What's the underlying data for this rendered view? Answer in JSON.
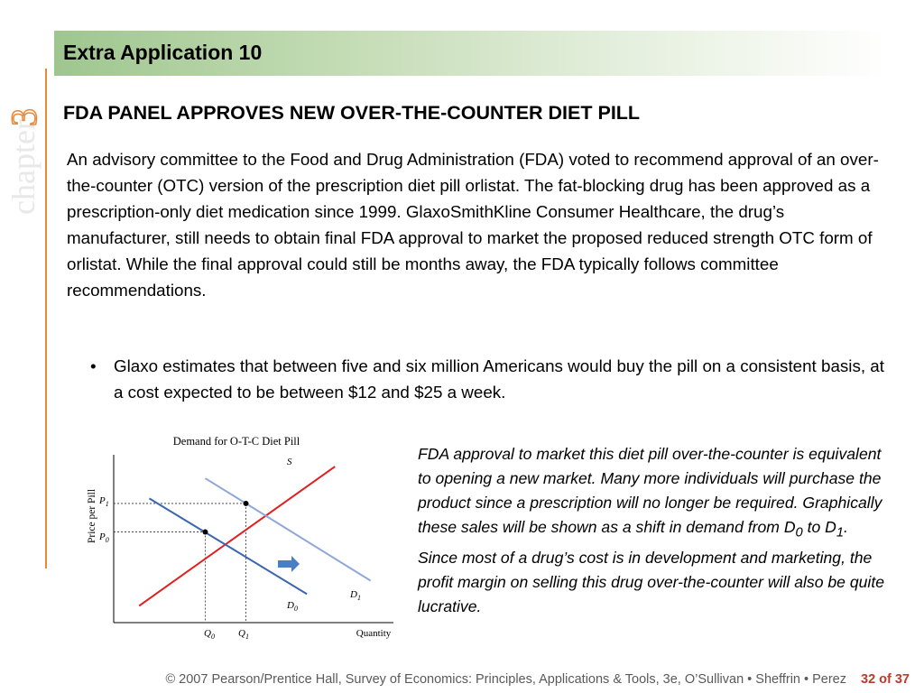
{
  "side_label": {
    "word": "chapter",
    "number": "3"
  },
  "header": {
    "title": "Extra Application 10"
  },
  "subtitle": "FDA PANEL APPROVES NEW OVER-THE-COUNTER DIET PILL",
  "body_paragraph": "An advisory committee to the Food and Drug Administration (FDA) voted to recommend approval of an over-the-counter (OTC) version of the prescription diet pill orlistat. The fat-blocking drug has been approved as a prescription-only diet medication since 1999. GlaxoSmithKline Consumer Healthcare, the drug’s manufacturer, still needs to obtain final FDA approval to market the proposed reduced strength OTC form of orlistat. While the final approval could still be months away, the FDA typically follows committee recommendations.",
  "bullet": {
    "marker": "•",
    "text": "Glaxo estimates that between five and six million Americans would buy the pill on a consistent basis, at a cost expected to be between $12 and $25 a week."
  },
  "chart": {
    "title": "Demand for O-T-C Diet Pill",
    "ylabel": "Price per Pill",
    "xlabel": "Quantity",
    "labels": {
      "S": "S",
      "D1": "D",
      "D1_sub": "1",
      "D0": "D",
      "D0_sub": "0",
      "P1": "P",
      "P1_sub": "1",
      "P0": "P",
      "P0_sub": "0",
      "Q0": "Q",
      "Q0_sub": "0",
      "Q1": "Q",
      "Q1_sub": "1"
    },
    "colors": {
      "supply": "#e02020",
      "demand_d0": "#3a66b0",
      "demand_d1": "#8fa8d8",
      "shift_arrow": "#4a7fc8"
    }
  },
  "chart_data": {
    "type": "line",
    "title": "Demand for O-T-C Diet Pill",
    "xlabel": "Quantity",
    "ylabel": "Price per Pill",
    "series": [
      {
        "name": "S",
        "x": [
          1.0,
          8.7
        ],
        "y": [
          1.0,
          9.3
        ]
      },
      {
        "name": "D0",
        "x": [
          1.4,
          7.6
        ],
        "y": [
          7.4,
          1.7
        ]
      },
      {
        "name": "D1",
        "x": [
          3.6,
          10.1
        ],
        "y": [
          8.6,
          2.5
        ]
      }
    ],
    "equilibria": [
      {
        "price": "P0",
        "quantity": "Q0",
        "x": 3.6,
        "y": 5.4
      },
      {
        "price": "P1",
        "quantity": "Q1",
        "x": 5.2,
        "y": 7.1
      }
    ],
    "annotation": "shift arrow from D0 to D1",
    "xlim": [
      0,
      11
    ],
    "ylim": [
      0,
      10
    ],
    "grid": false
  },
  "note": {
    "part1": "FDA approval to market this diet pill over-the-counter is equivalent to opening a new market. Many more individuals will purchase the product since a prescription will no longer be required. Graphically these sales will be shown as a shift in demand from D",
    "sub1": "0",
    "part2": " to D",
    "sub2": "1",
    "part3": ". Since most of a drug’s cost is in development and marketing, the profit margin on selling this drug over-the-counter will also be quite lucrative."
  },
  "footer": {
    "credit": "© 2007 Pearson/Prentice Hall, Survey of Economics: Principles, Applications & Tools, 3e, O’Sullivan • Sheffrin • Perez",
    "page": "32 of 37"
  }
}
